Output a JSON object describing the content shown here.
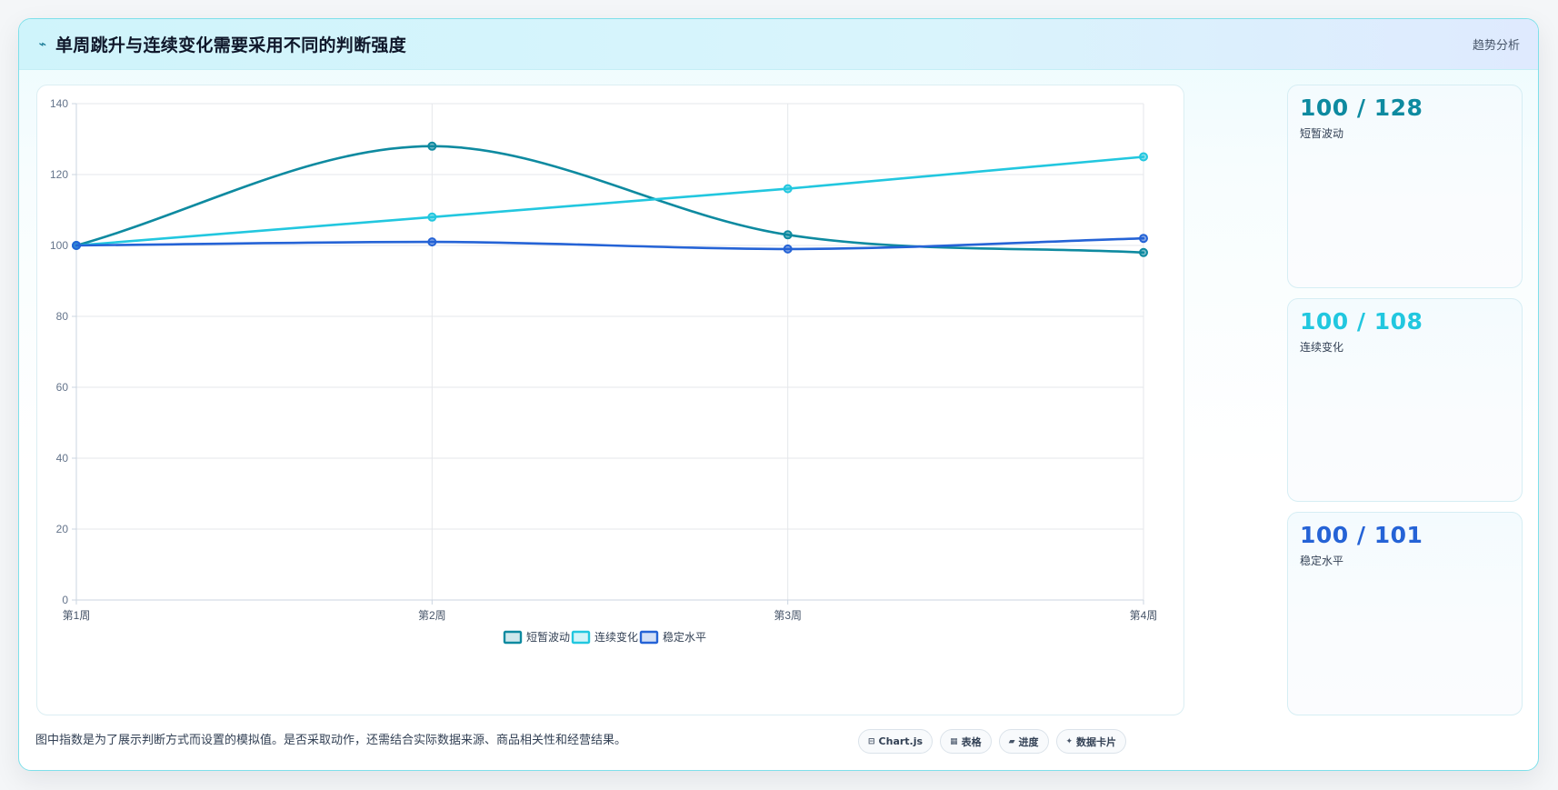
{
  "header": {
    "icon": "lightning-icon",
    "title": "单周跳升与连续变化需要采用不同的判断强度",
    "right_label": "趋势分析"
  },
  "stats": [
    {
      "value": "100 / 128",
      "label": "短暂波动",
      "color": "#0e8aa0"
    },
    {
      "value": "100 / 108",
      "label": "连续变化",
      "color": "#22c7df"
    },
    {
      "value": "100 / 101",
      "label": "稳定水平",
      "color": "#2563d6"
    }
  ],
  "footnote": "图中指数是为了展示判断方式而设置的模拟值。是否采取动作，还需结合实际数据来源、商品相关性和经营结果。",
  "tools": [
    {
      "icon": "table-icon",
      "glyph": "⊟",
      "label": "Chart.js"
    },
    {
      "icon": "grid-icon",
      "glyph": "▦",
      "label": "表格"
    },
    {
      "icon": "progress-icon",
      "glyph": "▰",
      "label": "进度"
    },
    {
      "icon": "sparkle-icon",
      "glyph": "✦",
      "label": "数据卡片"
    }
  ],
  "chart_data": {
    "type": "line",
    "categories": [
      "第1周",
      "第2周",
      "第3周",
      "第4周"
    ],
    "ylim": [
      0,
      140
    ],
    "yticks": [
      0,
      20,
      40,
      60,
      80,
      100,
      120,
      140
    ],
    "grid": true,
    "legend_position": "bottom-center",
    "series": [
      {
        "name": "短暂波动",
        "values": [
          100,
          128,
          103,
          98
        ],
        "color": "#0e8aa0",
        "smooth": true
      },
      {
        "name": "连续变化",
        "values": [
          100,
          108,
          116,
          125
        ],
        "color": "#22c7df",
        "smooth": false
      },
      {
        "name": "稳定水平",
        "values": [
          100,
          101,
          99,
          102
        ],
        "color": "#2563d6",
        "smooth": true
      }
    ]
  }
}
